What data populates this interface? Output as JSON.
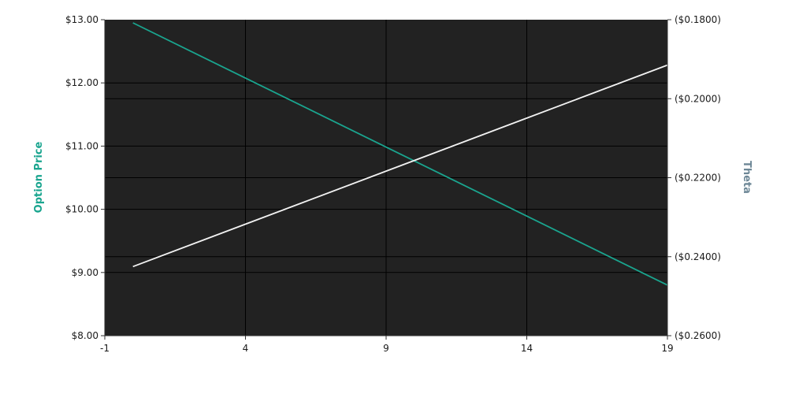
{
  "chart_data": {
    "type": "line",
    "xlim": [
      -1,
      19
    ],
    "x_ticks": [
      "-1",
      "4",
      "9",
      "14",
      "19"
    ],
    "y_left": {
      "label": "Option Price",
      "range": [
        8,
        13
      ],
      "ticks": [
        "$8.00",
        "$9.00",
        "$10.00",
        "$11.00",
        "$12.00",
        "$13.00"
      ]
    },
    "y_right": {
      "label": "Theta",
      "range": [
        -0.26,
        -0.18
      ],
      "ticks": [
        "($0.2600)",
        "($0.2400)",
        "($0.2200)",
        "($0.2000)",
        "($0.1800)"
      ]
    },
    "grid": true,
    "plot_background": "#222222",
    "series": [
      {
        "axis": "left",
        "color": "#1aa58f",
        "x": [
          0,
          19
        ],
        "y": [
          12.95,
          8.8
        ]
      },
      {
        "axis": "right",
        "color": "#f2f2f2",
        "x": [
          0,
          19
        ],
        "y": [
          -0.2425,
          -0.1915
        ]
      }
    ]
  }
}
